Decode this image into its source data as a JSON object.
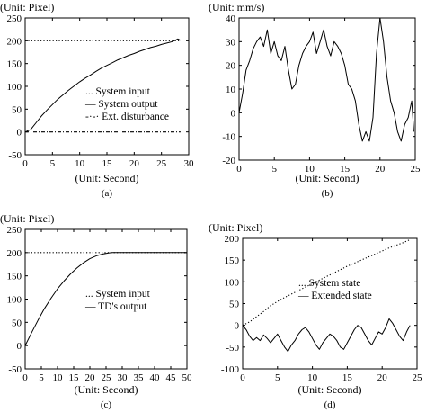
{
  "chart_data": [
    {
      "id": "a",
      "type": "line",
      "unit_label": "(Unit: Pixel)",
      "xlabel": "(Unit: Second)",
      "caption": "(a)",
      "xlim": [
        0,
        30
      ],
      "ylim": [
        -50,
        250
      ],
      "xticks": [
        0,
        5,
        10,
        15,
        20,
        25,
        30
      ],
      "yticks": [
        -50,
        0,
        50,
        100,
        150,
        200,
        250
      ],
      "legend": [
        "... System input",
        "— System output",
        "-·-· Ext. disturbance"
      ],
      "series": [
        {
          "style": "dotted",
          "x": [
            0,
            28.5
          ],
          "y": [
            200,
            200
          ]
        },
        {
          "style": "solid",
          "x": [
            0,
            1,
            2,
            3,
            4,
            5,
            6,
            7,
            8,
            9,
            10,
            11,
            12,
            13,
            14,
            15,
            16,
            17,
            18,
            19,
            20,
            21,
            22,
            23,
            24,
            25,
            26,
            27,
            28,
            28.5
          ],
          "y": [
            0,
            5,
            20,
            35,
            48,
            60,
            72,
            82,
            92,
            101,
            110,
            118,
            125,
            133,
            140,
            146,
            152,
            158,
            163,
            168,
            172,
            177,
            181,
            185,
            188,
            192,
            195,
            198,
            204,
            201
          ]
        },
        {
          "style": "dashdot",
          "x": [
            0,
            28.5
          ],
          "y": [
            0,
            0
          ]
        }
      ]
    },
    {
      "id": "b",
      "type": "line",
      "unit_label": "(Unit: mm/s)",
      "xlabel": "(Unit: Second)",
      "caption": "(b)",
      "xlim": [
        0,
        25
      ],
      "ylim": [
        -20,
        40
      ],
      "xticks": [
        0,
        5,
        10,
        15,
        20,
        25
      ],
      "yticks": [
        -20,
        -10,
        0,
        10,
        20,
        30,
        40
      ],
      "series": [
        {
          "style": "solid",
          "x": [
            0,
            0.5,
            1,
            1.5,
            2,
            2.5,
            3,
            3.5,
            4,
            4.5,
            5,
            5.5,
            6,
            6.5,
            7,
            7.5,
            8,
            8.5,
            9,
            9.5,
            10,
            10.5,
            11,
            11.5,
            12,
            12.5,
            13,
            13.5,
            14,
            14.5,
            15,
            15.5,
            16,
            16.5,
            17,
            17.5,
            18,
            18.5,
            19,
            19.5,
            20,
            20.5,
            21,
            21.5,
            22,
            22.5,
            23,
            23.5,
            24,
            24.5,
            24.8
          ],
          "y": [
            0,
            8,
            18,
            22,
            27,
            30,
            32,
            28,
            35,
            25,
            30,
            24,
            22,
            28,
            18,
            10,
            12,
            20,
            25,
            28,
            30,
            34,
            25,
            30,
            35,
            28,
            24,
            30,
            28,
            25,
            20,
            12,
            10,
            5,
            -5,
            -12,
            -8,
            -12,
            -2,
            25,
            40,
            30,
            15,
            5,
            0,
            -8,
            -12,
            -5,
            -2,
            5,
            -8
          ]
        }
      ]
    },
    {
      "id": "c",
      "type": "line",
      "unit_label": "(Unit: Pixel)",
      "xlabel": "(Unit: Second)",
      "caption": "(c)",
      "xlim": [
        0,
        50
      ],
      "ylim": [
        -50,
        250
      ],
      "xticks": [
        0,
        5,
        10,
        15,
        20,
        25,
        30,
        35,
        40,
        45,
        50
      ],
      "yticks": [
        -50,
        0,
        50,
        100,
        150,
        200,
        250
      ],
      "legend": [
        "... System input",
        "— TD's output"
      ],
      "series": [
        {
          "style": "dotted",
          "x": [
            0,
            50
          ],
          "y": [
            200,
            200
          ]
        },
        {
          "style": "solid",
          "x": [
            0,
            2,
            4,
            6,
            8,
            10,
            12,
            14,
            16,
            18,
            20,
            22,
            24,
            26,
            27,
            30,
            40,
            50
          ],
          "y": [
            0,
            28,
            55,
            80,
            102,
            122,
            139,
            154,
            167,
            178,
            187,
            193,
            197,
            199.5,
            200,
            200,
            200,
            200
          ]
        }
      ]
    },
    {
      "id": "d",
      "type": "line",
      "unit_label": "(Unit: Pixel)",
      "xlabel": "(Unit: Second)",
      "caption": "(d)",
      "xlim": [
        0,
        25
      ],
      "ylim": [
        -100,
        200
      ],
      "xticks": [
        0,
        5,
        10,
        15,
        20,
        25
      ],
      "yticks": [
        -100,
        -50,
        0,
        50,
        100,
        150,
        200
      ],
      "legend": [
        "... System state",
        "— Extended state"
      ],
      "series": [
        {
          "style": "dotted",
          "x": [
            0,
            1,
            2,
            3,
            4,
            5,
            6,
            7,
            8,
            9,
            10,
            11,
            12,
            13,
            14,
            15,
            16,
            17,
            18,
            19,
            20,
            21,
            22,
            23,
            24
          ],
          "y": [
            0,
            8,
            20,
            32,
            45,
            55,
            64,
            72,
            80,
            88,
            96,
            104,
            112,
            120,
            128,
            136,
            143,
            150,
            157,
            164,
            171,
            178,
            184,
            190,
            197
          ]
        },
        {
          "style": "solid",
          "x": [
            0,
            0.5,
            1,
            1.5,
            2,
            2.5,
            3,
            3.5,
            4,
            4.5,
            5,
            5.5,
            6,
            6.5,
            7,
            7.5,
            8,
            8.5,
            9,
            9.5,
            10,
            10.5,
            11,
            11.5,
            12,
            12.5,
            13,
            13.5,
            14,
            14.5,
            15,
            15.5,
            16,
            16.5,
            17,
            17.5,
            18,
            18.5,
            19,
            19.5,
            20,
            20.5,
            21,
            21.5,
            22,
            22.5,
            23,
            23.5,
            24
          ],
          "y": [
            0,
            -10,
            -25,
            -35,
            -28,
            -35,
            -22,
            -30,
            -40,
            -30,
            -20,
            -35,
            -50,
            -60,
            -45,
            -35,
            -20,
            -10,
            -5,
            -15,
            -30,
            -45,
            -55,
            -40,
            -30,
            -20,
            -25,
            -35,
            -50,
            -55,
            -40,
            -25,
            -10,
            0,
            -5,
            -20,
            -35,
            -45,
            -30,
            -15,
            -20,
            -5,
            15,
            5,
            -10,
            -25,
            -35,
            -15,
            0
          ]
        }
      ]
    }
  ]
}
